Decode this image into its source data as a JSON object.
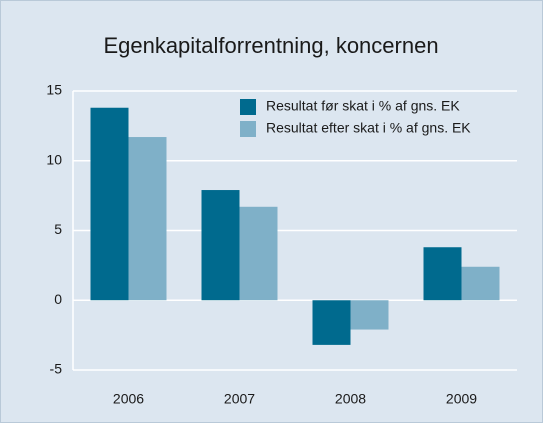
{
  "chart_data": {
    "type": "bar",
    "title": "Egenkapitalforrentning, koncernen",
    "categories": [
      "2006",
      "2007",
      "2008",
      "2009"
    ],
    "series": [
      {
        "name": "Resultat før skat i % af gns. EK",
        "color": "#006a8e",
        "values": [
          13.8,
          7.9,
          -3.2,
          3.8
        ]
      },
      {
        "name": "Resultat efter skat i % af gns. EK",
        "color": "#7fb0c8",
        "values": [
          11.7,
          6.7,
          -2.1,
          2.4
        ]
      }
    ],
    "ylim": [
      -5,
      15
    ],
    "yticks": [
      -5,
      0,
      5,
      10,
      15
    ],
    "grid": true,
    "legend": "upper right"
  }
}
